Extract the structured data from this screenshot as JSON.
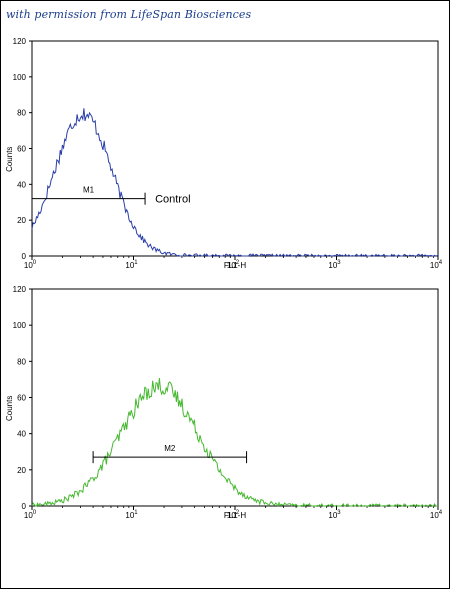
{
  "watermark": "with permission from LifeSpan Biosciences",
  "chart_data": [
    {
      "type": "line",
      "xscale": "log",
      "xlim": [
        1,
        10000
      ],
      "ylim": [
        0,
        120
      ],
      "xlabel": "FL1-H",
      "ylabel": "Counts",
      "x_ticks": [
        {
          "base": "10",
          "exp": "0"
        },
        {
          "base": "10",
          "exp": "1"
        },
        {
          "base": "10",
          "exp": "2"
        },
        {
          "base": "10",
          "exp": "3"
        },
        {
          "base": "10",
          "exp": "4"
        }
      ],
      "y_ticks": [
        "0",
        "20",
        "40",
        "60",
        "80",
        "100",
        "120"
      ],
      "line_color": "#2b3fa8",
      "histogram": {
        "peak_x": 3.2,
        "peak_y": 78,
        "spread_decades": 0.28,
        "start_x": 1.0,
        "noise": 6
      },
      "gate": {
        "label": "M1",
        "x_start": 1.0,
        "x_end": 13,
        "y": 32
      },
      "annotation": "Control"
    },
    {
      "type": "line",
      "xscale": "log",
      "xlim": [
        1,
        10000
      ],
      "ylim": [
        0,
        120
      ],
      "xlabel": "FL1-H",
      "ylabel": "Counts",
      "x_ticks": [
        {
          "base": "10",
          "exp": "0"
        },
        {
          "base": "10",
          "exp": "1"
        },
        {
          "base": "10",
          "exp": "2"
        },
        {
          "base": "10",
          "exp": "3"
        },
        {
          "base": "10",
          "exp": "4"
        }
      ],
      "y_ticks": [
        "0",
        "20",
        "40",
        "60",
        "80",
        "100",
        "120"
      ],
      "line_color": "#45b82f",
      "histogram": {
        "peak_x": 18,
        "peak_y": 65,
        "spread_decades": 0.38,
        "start_x": 1.0,
        "noise": 7
      },
      "gate": {
        "label": "M2",
        "x_start": 4,
        "x_end": 130,
        "y": 27
      },
      "annotation": ""
    }
  ]
}
